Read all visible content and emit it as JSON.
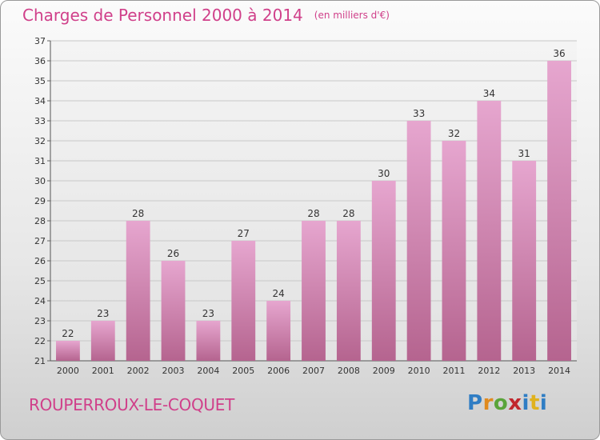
{
  "chart_data": {
    "type": "bar",
    "title": "Charges de Personnel 2000 à 2014",
    "subtitle": "(en milliers d'€)",
    "categories": [
      "2000",
      "2001",
      "2002",
      "2003",
      "2004",
      "2005",
      "2006",
      "2007",
      "2008",
      "2009",
      "2010",
      "2011",
      "2012",
      "2013",
      "2014"
    ],
    "values": [
      22,
      23,
      28,
      26,
      23,
      27,
      24,
      28,
      28,
      30,
      33,
      32,
      34,
      31,
      36
    ],
    "ylim": [
      21,
      37
    ],
    "yticks": [
      21,
      22,
      23,
      24,
      25,
      26,
      27,
      28,
      29,
      30,
      31,
      32,
      33,
      34,
      35,
      36,
      37
    ],
    "grid": true,
    "bar_color": "#d98bb8",
    "xlabel": "",
    "ylabel": ""
  },
  "footer": {
    "commune": "ROUPERROUX-LE-COQUET",
    "logo_text": "Proxiti"
  },
  "colors": {
    "accent": "#d0408a",
    "grid": "#c8c8c8"
  }
}
